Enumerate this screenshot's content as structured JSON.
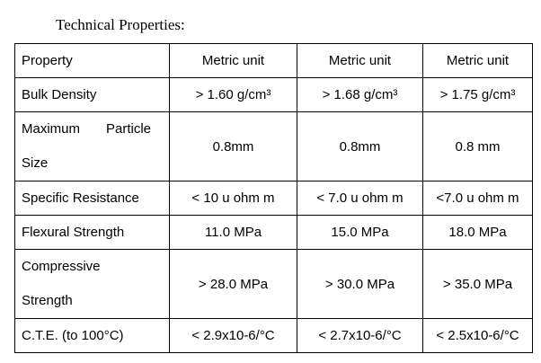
{
  "title": "Technical Properties:",
  "table": {
    "rows": [
      [
        "Property",
        "Metric unit",
        "Metric unit",
        "Metric unit"
      ],
      [
        "Bulk Density",
        "> 1.60 g/cm³",
        "> 1.68 g/cm³",
        "> 1.75 g/cm³"
      ],
      [
        "Maximum Particle Size",
        "0.8mm",
        "0.8mm",
        "0.8 mm"
      ],
      [
        "Specific Resistance",
        "< 10 u ohm m",
        "< 7.0 u ohm m",
        "<7.0 u ohm m"
      ],
      [
        "Flexural Strength",
        "11.0 MPa",
        "15.0 MPa",
        "18.0 MPa"
      ],
      [
        "Compressive Strength",
        "> 28.0 MPa",
        "> 30.0 MPa",
        "> 35.0 MPa"
      ],
      [
        "C.T.E. (to 100°C)",
        "< 2.9x10-6/°C",
        "< 2.7x10-6/°C",
        "< 2.5x10-6/°C"
      ]
    ]
  }
}
